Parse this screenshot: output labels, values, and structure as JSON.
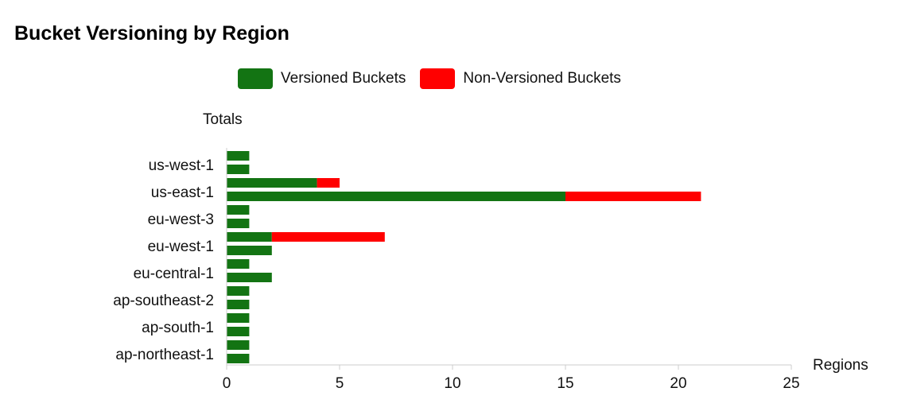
{
  "chart_data": {
    "type": "bar",
    "orientation": "horizontal",
    "stacked": true,
    "title": "Bucket Versioning by Region",
    "ylabel": "Totals",
    "xlabel": "Regions",
    "xlim": [
      0,
      25
    ],
    "xticks": [
      "0",
      "5",
      "10",
      "15",
      "20",
      "25"
    ],
    "category_labels": [
      "us-west-1",
      "us-east-1",
      "eu-west-3",
      "eu-west-1",
      "eu-central-1",
      "ap-southeast-2",
      "ap-south-1",
      "ap-northeast-1"
    ],
    "bars": [
      {
        "region": "us-west-1",
        "versioned": 1,
        "non_versioned": 0
      },
      {
        "region": "us-west-1",
        "versioned": 1,
        "non_versioned": 0
      },
      {
        "region": "us-east-1",
        "versioned": 4,
        "non_versioned": 1
      },
      {
        "region": "us-east-1",
        "versioned": 15,
        "non_versioned": 6
      },
      {
        "region": "eu-west-3",
        "versioned": 1,
        "non_versioned": 0
      },
      {
        "region": "eu-west-3",
        "versioned": 1,
        "non_versioned": 0
      },
      {
        "region": "eu-west-1",
        "versioned": 2,
        "non_versioned": 5
      },
      {
        "region": "eu-west-1",
        "versioned": 2,
        "non_versioned": 0
      },
      {
        "region": "eu-central-1",
        "versioned": 1,
        "non_versioned": 0
      },
      {
        "region": "eu-central-1",
        "versioned": 2,
        "non_versioned": 0
      },
      {
        "region": "ap-southeast-2",
        "versioned": 1,
        "non_versioned": 0
      },
      {
        "region": "ap-southeast-2",
        "versioned": 1,
        "non_versioned": 0
      },
      {
        "region": "ap-south-1",
        "versioned": 1,
        "non_versioned": 0
      },
      {
        "region": "ap-south-1",
        "versioned": 1,
        "non_versioned": 0
      },
      {
        "region": "ap-northeast-1",
        "versioned": 1,
        "non_versioned": 0
      },
      {
        "region": "ap-northeast-1",
        "versioned": 1,
        "non_versioned": 0
      }
    ],
    "series": [
      {
        "name": "Versioned Buckets",
        "color": "#137413"
      },
      {
        "name": "Non-Versioned Buckets",
        "color": "#ff0000"
      }
    ],
    "grid": false,
    "legend_position": "top"
  }
}
